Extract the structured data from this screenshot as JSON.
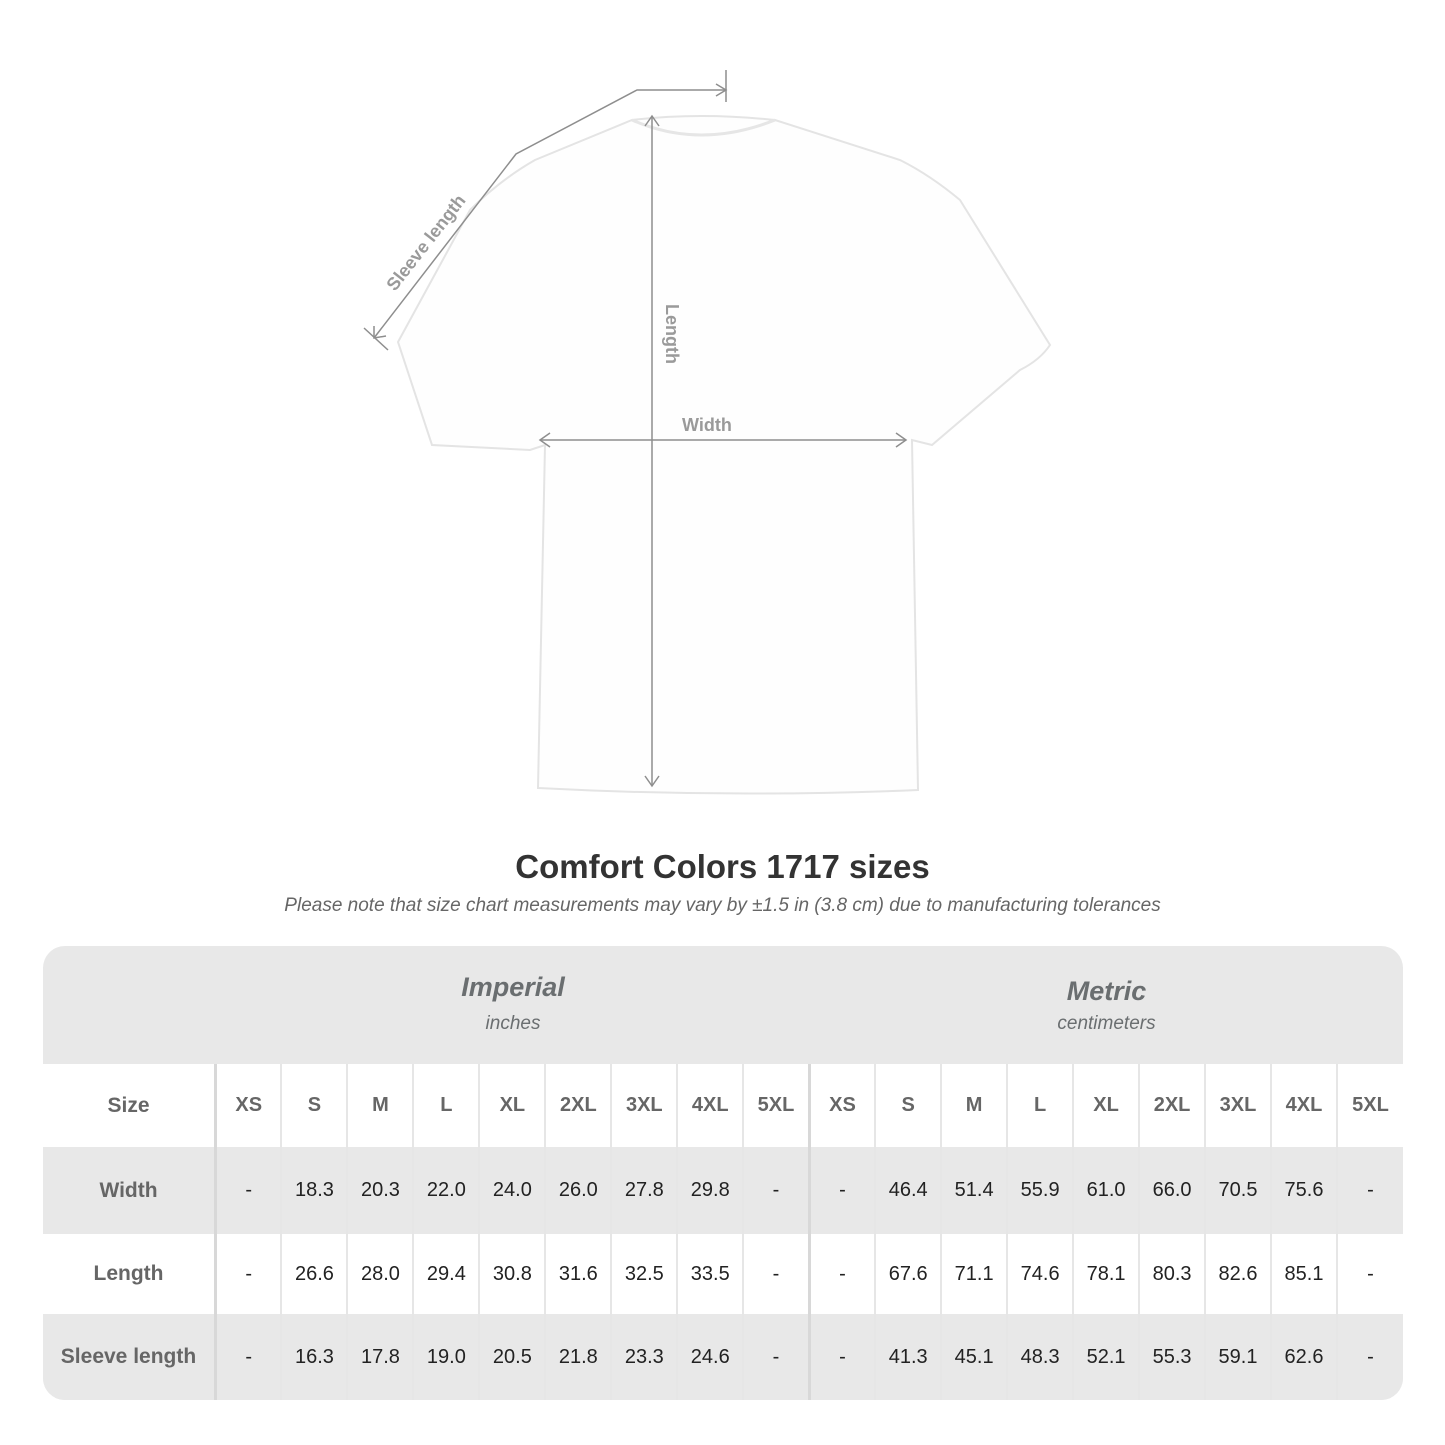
{
  "diagram": {
    "labels": {
      "sleeve": "Sleeve length",
      "length": "Length",
      "width": "Width"
    }
  },
  "title": "Comfort Colors 1717 sizes",
  "subtitle": "Please note that size chart measurements may vary by ±1.5 in (3.8 cm) due to manufacturing tolerances",
  "table": {
    "imperial": {
      "name": "Imperial",
      "unit": "inches"
    },
    "metric": {
      "name": "Metric",
      "unit": "centimeters"
    },
    "size_label": "Size",
    "sizes": [
      "XS",
      "S",
      "M",
      "L",
      "XL",
      "2XL",
      "3XL",
      "4XL",
      "5XL"
    ],
    "rows": [
      {
        "label": "Width",
        "imperial": [
          "-",
          "18.3",
          "20.3",
          "22.0",
          "24.0",
          "26.0",
          "27.8",
          "29.8",
          "-"
        ],
        "metric": [
          "-",
          "46.4",
          "51.4",
          "55.9",
          "61.0",
          "66.0",
          "70.5",
          "75.6",
          "-"
        ]
      },
      {
        "label": "Length",
        "imperial": [
          "-",
          "26.6",
          "28.0",
          "29.4",
          "30.8",
          "31.6",
          "32.5",
          "33.5",
          "-"
        ],
        "metric": [
          "-",
          "67.6",
          "71.1",
          "74.6",
          "78.1",
          "80.3",
          "82.6",
          "85.1",
          "-"
        ]
      },
      {
        "label": "Sleeve length",
        "imperial": [
          "-",
          "16.3",
          "17.8",
          "19.0",
          "20.5",
          "21.8",
          "23.3",
          "24.6",
          "-"
        ],
        "metric": [
          "-",
          "41.3",
          "45.1",
          "48.3",
          "52.1",
          "55.3",
          "59.1",
          "62.6",
          "-"
        ]
      }
    ]
  }
}
